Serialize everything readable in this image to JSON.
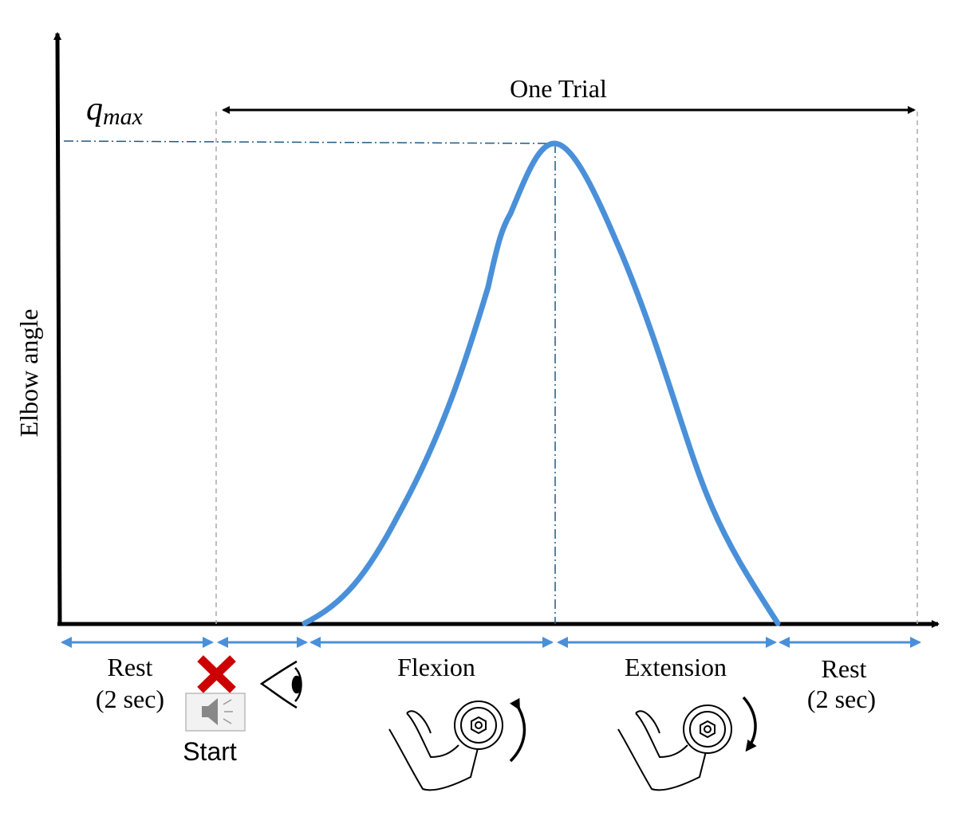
{
  "title": "One Trial",
  "y_axis_label": "Elbow angle",
  "peak_label": {
    "symbol": "q",
    "subscript": "max"
  },
  "phases": [
    {
      "label": "Rest",
      "sublabel": "(2 sec)"
    },
    {
      "label": "Start"
    },
    {
      "label": "Flexion"
    },
    {
      "label": "Extension"
    },
    {
      "label": "Rest",
      "sublabel": "(2 sec)"
    }
  ]
}
